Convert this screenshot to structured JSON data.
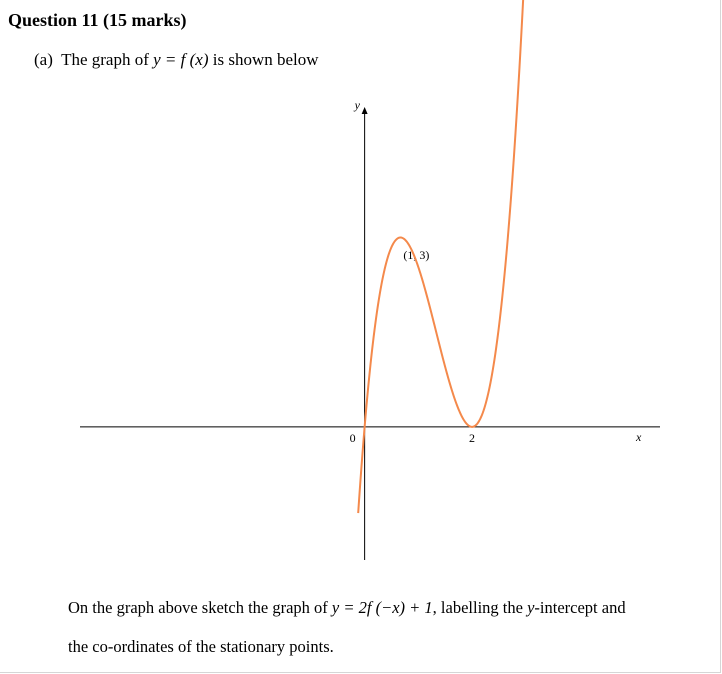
{
  "question": {
    "heading": "Question 11 (15 marks)",
    "part_a_label": "(a)",
    "part_a_text_before": "The graph of",
    "part_a_math": "y = f (x)",
    "part_a_text_after": "is shown below"
  },
  "instruction": {
    "line1_before": "On the graph above sketch the graph of",
    "line1_math": "y = 2f (−x) + 1",
    "line1_middle": ", labelling the",
    "line1_math2": "y",
    "line1_after": "-intercept and",
    "line2": "the co-ordinates of the stationary points."
  },
  "chart_data": {
    "type": "line",
    "title": "",
    "xlabel": "x",
    "ylabel": "y",
    "x_tick_labels": [
      "0",
      "2"
    ],
    "annotations": [
      {
        "text": "(1, 3)",
        "x": 1,
        "y": 3
      }
    ],
    "xlim": [
      -5.3,
      5.5
    ],
    "ylim": [
      -2.5,
      6.1
    ],
    "grid": false,
    "series": [
      {
        "color": "#f4894b",
        "function": "y = 3x(x-2)^2",
        "x_range": [
          -0.12,
          3.36
        ]
      }
    ]
  }
}
